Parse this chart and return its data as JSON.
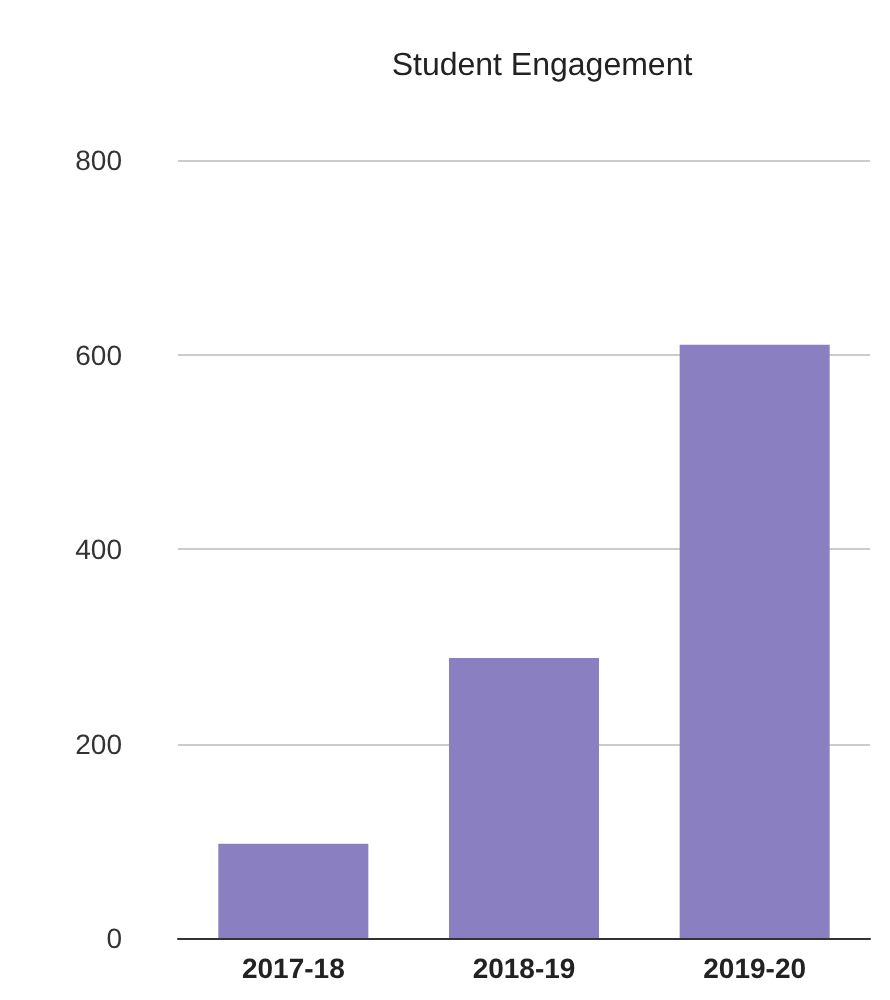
{
  "chart_data": {
    "type": "bar",
    "title": "Student Engagement",
    "categories": [
      "2017-18",
      "2018-19",
      "2019-20"
    ],
    "values": [
      97,
      288,
      610
    ],
    "color": "#8a7fc1",
    "ylim": [
      0,
      800
    ],
    "yticks": [
      0,
      200,
      400,
      600,
      800
    ],
    "grid": "y"
  }
}
